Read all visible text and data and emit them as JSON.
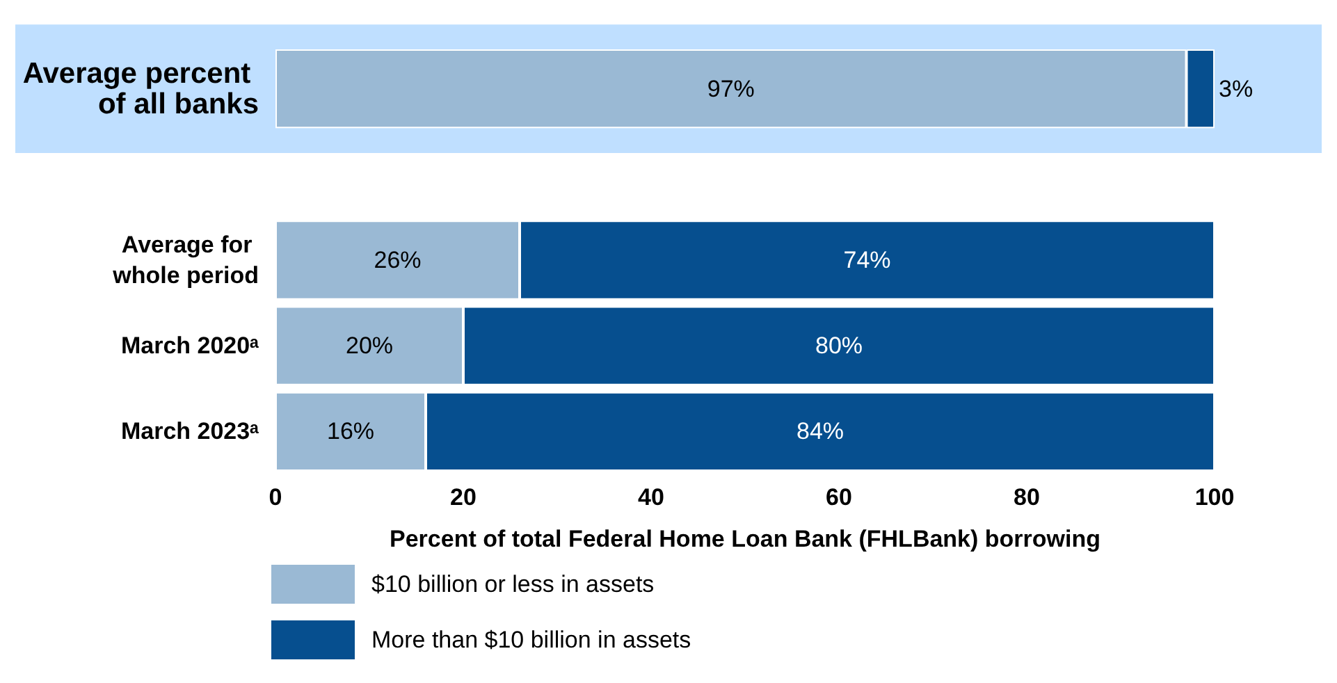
{
  "chart_data": {
    "type": "bar",
    "orientation": "horizontal",
    "stacked": true,
    "categories": [
      "Average percent of all banks",
      null,
      "Average for whole period",
      "March 2020ᵃ",
      "March 2023ᵃ"
    ],
    "series": [
      {
        "name": "$10 billion or less in assets",
        "color": "#9ab9d4",
        "values": [
          97,
          null,
          26,
          20,
          16
        ],
        "value_labels": [
          "97%",
          null,
          "26%",
          "20%",
          "16%"
        ]
      },
      {
        "name": "More than $10 billion in assets",
        "color": "#064f8f",
        "values": [
          3,
          null,
          74,
          80,
          84
        ],
        "value_labels": [
          "3%",
          null,
          "74%",
          "80%",
          "84%"
        ]
      }
    ],
    "xlim": [
      0,
      100
    ],
    "xticks": [
      0,
      20,
      40,
      60,
      80,
      100
    ],
    "xlabel": "Percent of total Federal Home Loan Bank (FHLBank) borrowing",
    "bands": [
      {
        "axis": "y",
        "from": "Average percent of all banks",
        "to": "Average percent of all banks",
        "color": "#bfdfff"
      }
    ],
    "legend": "bottom left",
    "grid": false
  }
}
